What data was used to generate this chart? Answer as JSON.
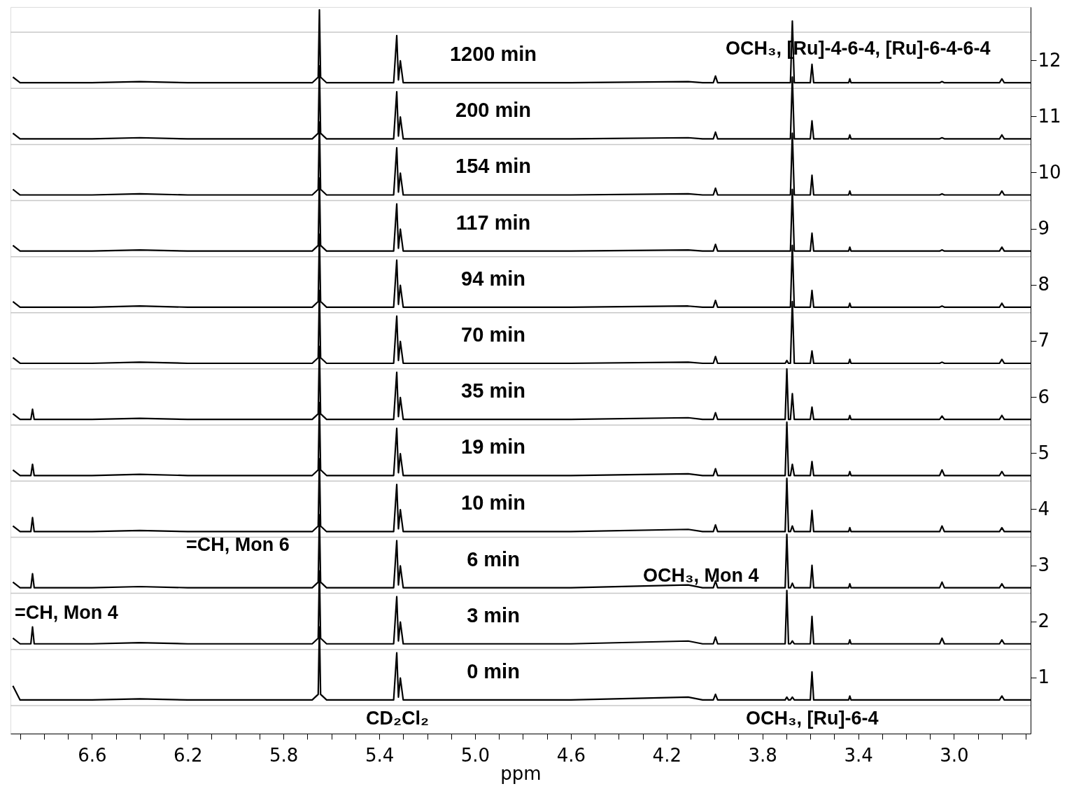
{
  "chart_data": {
    "type": "line",
    "xlabel": "ppm",
    "xlim": [
      6.94,
      2.68
    ],
    "ylim": [
      0.0,
      12.95
    ],
    "xticks": [
      {
        "value": 6.9,
        "label": null
      },
      {
        "value": 6.8,
        "label": null
      },
      {
        "value": 6.7,
        "label": null
      },
      6.6,
      {
        "value": 6.5,
        "label": null
      },
      {
        "value": 6.4,
        "label": null
      },
      {
        "value": 6.3,
        "label": null
      },
      6.2,
      {
        "value": 6.1,
        "label": null
      },
      {
        "value": 6.0,
        "label": null
      },
      {
        "value": 5.9,
        "label": null
      },
      5.8,
      {
        "value": 5.7,
        "label": null
      },
      {
        "value": 5.6,
        "label": null
      },
      {
        "value": 5.5,
        "label": null
      },
      5.4,
      {
        "value": 5.3,
        "label": null
      },
      {
        "value": 5.2,
        "label": null
      },
      {
        "value": 5.1,
        "label": null
      },
      {
        "value": 5.0,
        "label": "5.0"
      },
      {
        "value": 4.9,
        "label": null
      },
      {
        "value": 4.8,
        "label": null
      },
      {
        "value": 4.7,
        "label": null
      },
      4.6,
      {
        "value": 4.5,
        "label": null
      },
      {
        "value": 4.4,
        "label": null
      },
      {
        "value": 4.3,
        "label": null
      },
      4.2,
      {
        "value": 4.1,
        "label": null
      },
      {
        "value": 4.0,
        "label": null
      },
      {
        "value": 3.9,
        "label": null
      },
      3.8,
      {
        "value": 3.7,
        "label": null
      },
      {
        "value": 3.6,
        "label": null
      },
      {
        "value": 3.5,
        "label": null
      },
      3.4,
      {
        "value": 3.3,
        "label": null
      },
      {
        "value": 3.2,
        "label": null
      },
      {
        "value": 3.1,
        "label": null
      },
      {
        "value": 3.0,
        "label": "3.0"
      },
      {
        "value": 2.9,
        "label": null
      },
      {
        "value": 2.8,
        "label": null
      },
      {
        "value": 2.7,
        "label": null
      }
    ],
    "yticks": [
      1,
      2,
      3,
      4,
      5,
      6,
      7,
      8,
      9,
      10,
      11,
      12
    ],
    "x": [
      6.93,
      6.9,
      6.855,
      6.848,
      6.841,
      6.6,
      6.4,
      6.2,
      5.8,
      5.68,
      5.655,
      5.65,
      5.645,
      5.62,
      5.34,
      5.327,
      5.32,
      5.312,
      5.3,
      4.6,
      4.11,
      4.05,
      4.005,
      3.996,
      3.987,
      3.75,
      3.705,
      3.698,
      3.691,
      3.683,
      3.675,
      3.667,
      3.6,
      3.593,
      3.586,
      3.44,
      3.435,
      3.43,
      3.06,
      3.05,
      3.04,
      2.81,
      2.8,
      2.79,
      2.68
    ],
    "series": [
      {
        "name": "0 min",
        "color": "#000000",
        "values": [
          0.85,
          0.6,
          0.6,
          0.6,
          0.6,
          0.6,
          0.62,
          0.6,
          0.6,
          0.6,
          0.7,
          1.9,
          0.7,
          0.6,
          0.6,
          1.44,
          0.65,
          0.99,
          0.6,
          0.6,
          0.65,
          0.6,
          0.6,
          0.7,
          0.6,
          0.6,
          0.6,
          0.65,
          0.6,
          0.6,
          0.65,
          0.6,
          0.6,
          1.1,
          0.6,
          0.6,
          0.67,
          0.6,
          0.6,
          0.6,
          0.6,
          0.6,
          0.67,
          0.6,
          0.6
        ]
      },
      {
        "name": "3 min",
        "color": "#000000",
        "values": [
          1.7,
          1.6,
          1.6,
          1.9,
          1.6,
          1.6,
          1.62,
          1.6,
          1.6,
          1.6,
          1.7,
          2.9,
          1.7,
          1.6,
          1.6,
          2.44,
          1.65,
          1.99,
          1.6,
          1.6,
          1.65,
          1.6,
          1.6,
          1.72,
          1.6,
          1.6,
          1.6,
          2.55,
          1.6,
          1.6,
          1.65,
          1.6,
          1.6,
          2.09,
          1.6,
          1.6,
          1.67,
          1.6,
          1.6,
          1.7,
          1.6,
          1.6,
          1.67,
          1.6,
          1.6
        ]
      },
      {
        "name": "6 min",
        "color": "#000000",
        "values": [
          2.7,
          2.6,
          2.6,
          2.85,
          2.6,
          2.6,
          2.62,
          2.6,
          2.6,
          2.6,
          2.7,
          3.9,
          2.7,
          2.6,
          2.6,
          3.44,
          2.65,
          2.99,
          2.6,
          2.6,
          2.65,
          2.6,
          2.6,
          2.72,
          2.6,
          2.6,
          2.6,
          3.55,
          2.6,
          2.6,
          2.68,
          2.6,
          2.6,
          3.0,
          2.6,
          2.6,
          2.67,
          2.6,
          2.6,
          2.7,
          2.6,
          2.6,
          2.67,
          2.6,
          2.6
        ]
      },
      {
        "name": "10 min",
        "color": "#000000",
        "values": [
          3.7,
          3.6,
          3.6,
          3.85,
          3.6,
          3.6,
          3.62,
          3.6,
          3.6,
          3.6,
          3.7,
          4.9,
          3.7,
          3.6,
          3.6,
          4.44,
          3.65,
          3.99,
          3.6,
          3.6,
          3.64,
          3.6,
          3.6,
          3.72,
          3.6,
          3.6,
          3.6,
          4.55,
          3.6,
          3.6,
          3.7,
          3.6,
          3.6,
          3.98,
          3.6,
          3.6,
          3.67,
          3.6,
          3.6,
          3.7,
          3.6,
          3.6,
          3.67,
          3.6,
          3.6
        ]
      },
      {
        "name": "19 min",
        "color": "#000000",
        "values": [
          4.7,
          4.6,
          4.6,
          4.8,
          4.6,
          4.6,
          4.62,
          4.6,
          4.6,
          4.6,
          4.7,
          5.9,
          4.7,
          4.6,
          4.6,
          5.44,
          4.65,
          4.99,
          4.6,
          4.6,
          4.63,
          4.6,
          4.6,
          4.72,
          4.6,
          4.6,
          4.6,
          5.55,
          4.6,
          4.6,
          4.8,
          4.6,
          4.6,
          4.85,
          4.6,
          4.6,
          4.67,
          4.6,
          4.6,
          4.7,
          4.6,
          4.6,
          4.67,
          4.6,
          4.6
        ]
      },
      {
        "name": "35 min",
        "color": "#000000",
        "values": [
          5.7,
          5.6,
          5.6,
          5.78,
          5.6,
          5.6,
          5.62,
          5.6,
          5.6,
          5.6,
          5.7,
          6.9,
          5.7,
          5.6,
          5.6,
          6.44,
          5.65,
          5.99,
          5.6,
          5.6,
          5.63,
          5.6,
          5.6,
          5.72,
          5.6,
          5.6,
          5.6,
          6.5,
          5.6,
          5.6,
          6.06,
          5.6,
          5.6,
          5.82,
          5.6,
          5.6,
          5.67,
          5.6,
          5.6,
          5.66,
          5.6,
          5.6,
          5.67,
          5.6,
          5.6
        ]
      },
      {
        "name": "70 min",
        "color": "#000000",
        "values": [
          6.7,
          6.6,
          6.6,
          6.6,
          6.6,
          6.6,
          6.62,
          6.6,
          6.6,
          6.6,
          6.7,
          7.9,
          6.7,
          6.6,
          6.6,
          7.44,
          6.65,
          6.99,
          6.6,
          6.6,
          6.62,
          6.6,
          6.6,
          6.72,
          6.6,
          6.6,
          6.6,
          6.65,
          6.6,
          6.6,
          7.7,
          6.6,
          6.6,
          6.82,
          6.6,
          6.6,
          6.67,
          6.6,
          6.6,
          6.62,
          6.6,
          6.6,
          6.67,
          6.6,
          6.6
        ]
      },
      {
        "name": "94 min",
        "color": "#000000",
        "values": [
          7.7,
          7.6,
          7.6,
          7.6,
          7.6,
          7.6,
          7.62,
          7.6,
          7.6,
          7.6,
          7.7,
          8.9,
          7.7,
          7.6,
          7.6,
          8.44,
          7.65,
          7.99,
          7.6,
          7.6,
          7.62,
          7.6,
          7.6,
          7.72,
          7.6,
          7.6,
          7.6,
          7.6,
          7.6,
          7.6,
          8.7,
          7.6,
          7.6,
          7.9,
          7.6,
          7.6,
          7.67,
          7.6,
          7.6,
          7.62,
          7.6,
          7.6,
          7.67,
          7.6,
          7.6
        ]
      },
      {
        "name": "117 min",
        "color": "#000000",
        "values": [
          8.7,
          8.6,
          8.6,
          8.6,
          8.6,
          8.6,
          8.62,
          8.6,
          8.6,
          8.6,
          8.7,
          9.9,
          8.7,
          8.6,
          8.6,
          9.44,
          8.65,
          8.99,
          8.6,
          8.6,
          8.62,
          8.6,
          8.6,
          8.72,
          8.6,
          8.6,
          8.6,
          8.6,
          8.6,
          8.6,
          9.7,
          8.6,
          8.6,
          8.92,
          8.6,
          8.6,
          8.67,
          8.6,
          8.6,
          8.62,
          8.6,
          8.6,
          8.67,
          8.6,
          8.6
        ]
      },
      {
        "name": "154 min",
        "color": "#000000",
        "values": [
          9.7,
          9.6,
          9.6,
          9.6,
          9.6,
          9.6,
          9.62,
          9.6,
          9.6,
          9.6,
          9.7,
          10.9,
          9.7,
          9.6,
          9.6,
          10.44,
          9.65,
          9.99,
          9.6,
          9.6,
          9.62,
          9.6,
          9.6,
          9.72,
          9.6,
          9.6,
          9.6,
          9.6,
          9.6,
          9.6,
          10.7,
          9.6,
          9.6,
          9.95,
          9.6,
          9.6,
          9.67,
          9.6,
          9.6,
          9.62,
          9.6,
          9.6,
          9.67,
          9.6,
          9.6
        ]
      },
      {
        "name": "200 min",
        "color": "#000000",
        "values": [
          10.7,
          10.6,
          10.6,
          10.6,
          10.6,
          10.6,
          10.62,
          10.6,
          10.6,
          10.6,
          10.7,
          11.9,
          10.7,
          10.6,
          10.6,
          11.44,
          10.65,
          10.99,
          10.6,
          10.6,
          10.62,
          10.6,
          10.6,
          10.72,
          10.6,
          10.6,
          10.6,
          10.6,
          10.6,
          10.6,
          11.7,
          10.6,
          10.6,
          10.92,
          10.6,
          10.6,
          10.67,
          10.6,
          10.6,
          10.62,
          10.6,
          10.6,
          10.67,
          10.6,
          10.6
        ]
      },
      {
        "name": "1200 min",
        "color": "#000000",
        "values": [
          11.7,
          11.6,
          11.6,
          11.6,
          11.6,
          11.6,
          11.62,
          11.6,
          11.6,
          11.6,
          11.7,
          12.9,
          11.7,
          11.6,
          11.6,
          12.44,
          11.65,
          11.99,
          11.6,
          11.6,
          11.62,
          11.6,
          11.6,
          11.72,
          11.6,
          11.6,
          11.6,
          11.6,
          11.6,
          11.6,
          12.7,
          11.6,
          11.6,
          11.93,
          11.6,
          11.6,
          11.67,
          11.6,
          11.6,
          11.62,
          11.6,
          11.6,
          11.67,
          11.6,
          11.6
        ]
      }
    ],
    "ref_lines": [
      {
        "axis": "y",
        "value": 0.5,
        "color": "#c8c8c8"
      },
      {
        "axis": "y",
        "value": 1.5,
        "color": "#c8c8c8"
      },
      {
        "axis": "y",
        "value": 2.5,
        "color": "#c8c8c8"
      },
      {
        "axis": "y",
        "value": 3.5,
        "color": "#c8c8c8"
      },
      {
        "axis": "y",
        "value": 4.5,
        "color": "#c8c8c8"
      },
      {
        "axis": "y",
        "value": 5.5,
        "color": "#c8c8c8"
      },
      {
        "axis": "y",
        "value": 6.5,
        "color": "#c8c8c8"
      },
      {
        "axis": "y",
        "value": 7.5,
        "color": "#c8c8c8"
      },
      {
        "axis": "y",
        "value": 8.5,
        "color": "#c8c8c8"
      },
      {
        "axis": "y",
        "value": 9.5,
        "color": "#c8c8c8"
      },
      {
        "axis": "y",
        "value": 10.5,
        "color": "#c8c8c8"
      },
      {
        "axis": "y",
        "value": 11.5,
        "color": "#c8c8c8"
      },
      {
        "axis": "y",
        "value": 12.5,
        "color": "#c8c8c8"
      }
    ],
    "annotations": [
      "=CH, Mon 4",
      "=CH, Mon 6",
      "OCH₃, Mon 4",
      "OCH₃, [Ru]-4-6-4, [Ru]-6-4-6-4",
      "CD₂Cl₂",
      "OCH₃, [Ru]-6-4"
    ]
  }
}
